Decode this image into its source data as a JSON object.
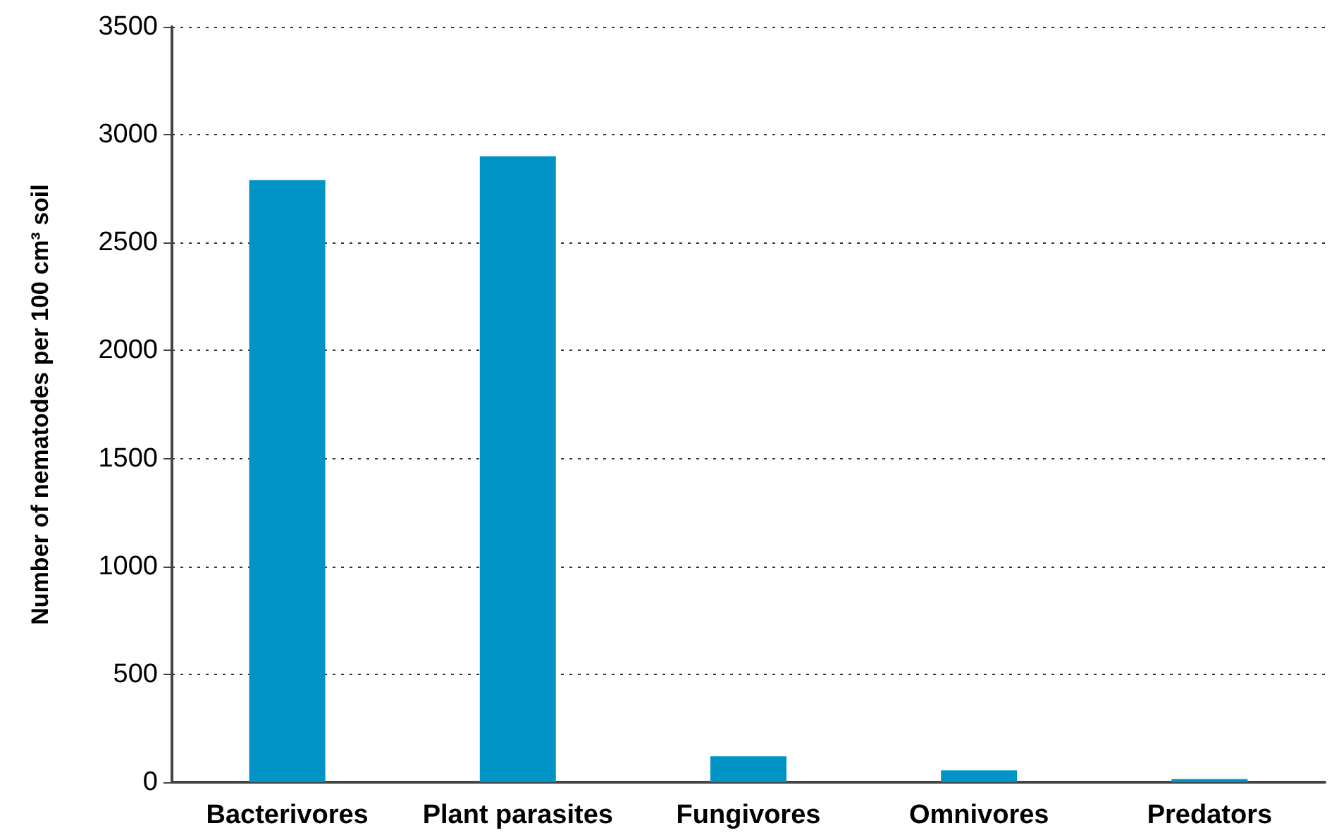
{
  "chart_data": {
    "type": "bar",
    "ylabel": "Number of nematodes per 100 cm³ soil",
    "categories": [
      "Bacterivores",
      "Plant parasites",
      "Fungivores",
      "Omnivores",
      "Predators"
    ],
    "values": [
      2790,
      2900,
      120,
      55,
      15
    ],
    "color": "#0093c6",
    "ylim": [
      0,
      3500
    ],
    "yticks": [
      0,
      500,
      1000,
      1500,
      2000,
      2500,
      3000,
      3500
    ],
    "grid": "y"
  }
}
